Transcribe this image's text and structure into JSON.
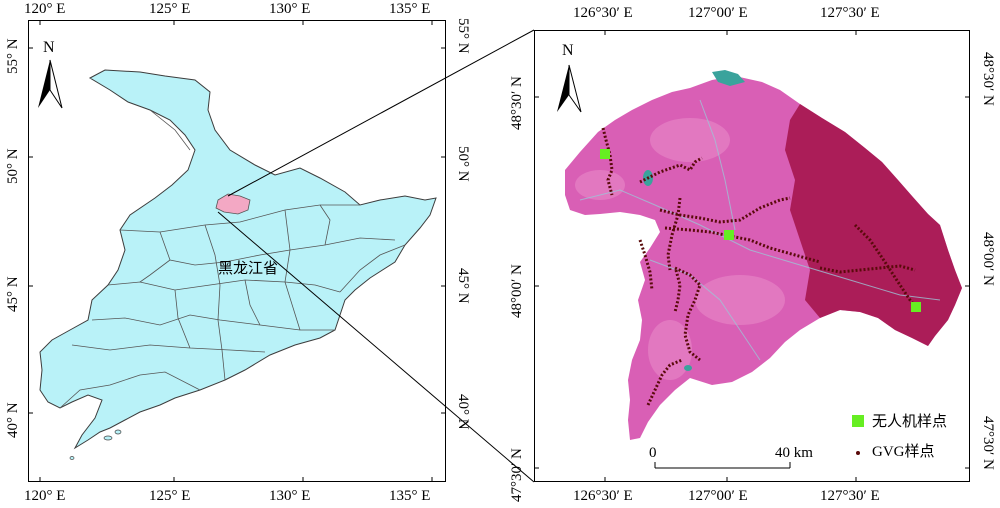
{
  "left_map": {
    "top_ticks": [
      "120° E",
      "125° E",
      "130° E",
      "135° E"
    ],
    "bottom_ticks": [
      "120° E",
      "125° E",
      "130° E",
      "135° E"
    ],
    "left_ticks": [
      "55° N",
      "50° N",
      "45° N",
      "40° N"
    ],
    "right_ticks": [
      "55° N",
      "50° N",
      "45° N",
      "40° N"
    ],
    "north_label": "N",
    "province_label": "黑龙江省",
    "colors": {
      "province_fill": "#b9f2f8",
      "study_area_fill": "#f3a8c4"
    }
  },
  "right_map": {
    "top_ticks": [
      "126°30′ E",
      "127°00′ E",
      "127°30′ E"
    ],
    "bottom_ticks": [
      "126°30′ E",
      "127°00′ E",
      "127°30′ E"
    ],
    "left_ticks": [
      "48°30′ N",
      "48°00′ N",
      "47°30′ N"
    ],
    "right_ticks": [
      "48°30′ N",
      "48°00′ N",
      "47°30′ N"
    ],
    "north_label": "N",
    "scale_bar": {
      "start_label": "0",
      "end_label": "40 km"
    },
    "legend": [
      {
        "label": "无人机样点",
        "symbol": "square",
        "color": "#66ee22"
      },
      {
        "label": "GVG样点",
        "symbol": "dot",
        "color": "#5a0a0a"
      }
    ],
    "colors": {
      "image_fill": "#d95fb5",
      "image_dark": "#a5164e"
    }
  }
}
